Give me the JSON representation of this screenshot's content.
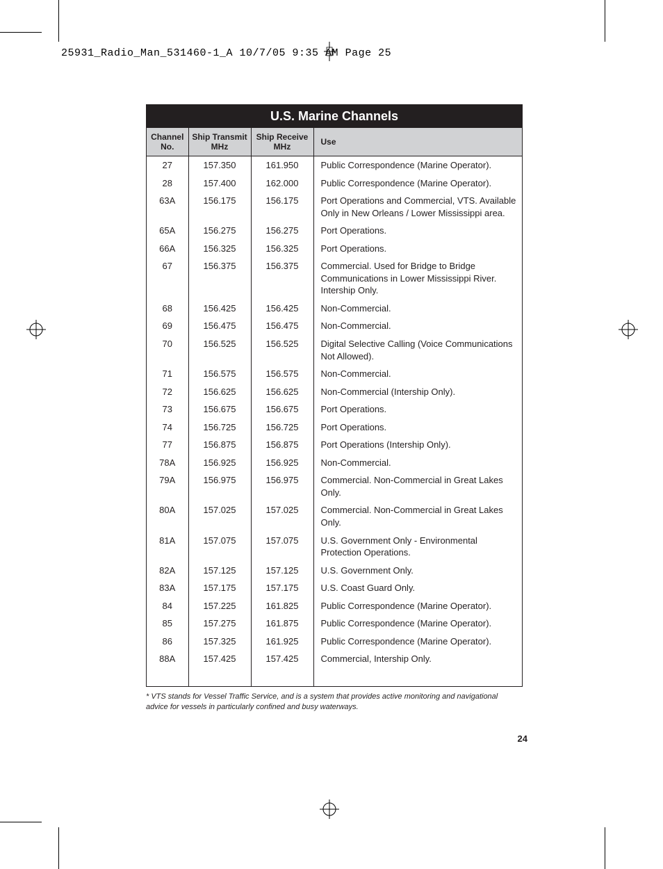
{
  "header": {
    "text": "25931_Radio_Man_531460-1_A  10/7/05  9:35 AM  Page 25"
  },
  "table": {
    "title": "U.S. Marine Channels",
    "columns": {
      "channel": "Channel No.",
      "transmit": "Ship Transmit MHz",
      "receive": "Ship Receive MHz",
      "use": "Use"
    },
    "rows": [
      {
        "ch": "27",
        "tx": "157.350",
        "rx": "161.950",
        "use": "Public Correspondence (Marine Operator)."
      },
      {
        "ch": "28",
        "tx": "157.400",
        "rx": "162.000",
        "use": "Public Correspondence (Marine Operator)."
      },
      {
        "ch": "63A",
        "tx": "156.175",
        "rx": "156.175",
        "use": "Port Operations and Commercial, VTS. Available Only in New Orleans / Lower Mississippi area."
      },
      {
        "ch": "65A",
        "tx": "156.275",
        "rx": "156.275",
        "use": "Port Operations."
      },
      {
        "ch": "66A",
        "tx": "156.325",
        "rx": "156.325",
        "use": "Port Operations."
      },
      {
        "ch": "67",
        "tx": "156.375",
        "rx": "156.375",
        "use": "Commercial.  Used for Bridge to Bridge Communications in Lower Mississippi River. Intership Only."
      },
      {
        "ch": "68",
        "tx": "156.425",
        "rx": "156.425",
        "use": "Non-Commercial."
      },
      {
        "ch": "69",
        "tx": "156.475",
        "rx": "156.475",
        "use": "Non-Commercial."
      },
      {
        "ch": "70",
        "tx": "156.525",
        "rx": "156.525",
        "use": "Digital Selective Calling (Voice Communications Not Allowed)."
      },
      {
        "ch": "71",
        "tx": "156.575",
        "rx": "156.575",
        "use": "Non-Commercial."
      },
      {
        "ch": "72",
        "tx": "156.625",
        "rx": "156.625",
        "use": "Non-Commercial (Intership Only)."
      },
      {
        "ch": "73",
        "tx": "156.675",
        "rx": "156.675",
        "use": "Port Operations."
      },
      {
        "ch": "74",
        "tx": "156.725",
        "rx": "156.725",
        "use": "Port Operations."
      },
      {
        "ch": "77",
        "tx": "156.875",
        "rx": "156.875",
        "use": "Port Operations (Intership Only)."
      },
      {
        "ch": "78A",
        "tx": "156.925",
        "rx": "156.925",
        "use": "Non-Commercial."
      },
      {
        "ch": "79A",
        "tx": "156.975",
        "rx": "156.975",
        "use": "Commercial. Non-Commercial in Great Lakes Only."
      },
      {
        "ch": "80A",
        "tx": "157.025",
        "rx": "157.025",
        "use": "Commercial. Non-Commercial in Great Lakes Only."
      },
      {
        "ch": "81A",
        "tx": "157.075",
        "rx": "157.075",
        "use": "U.S. Government Only - Environmental Protection Operations."
      },
      {
        "ch": "82A",
        "tx": "157.125",
        "rx": "157.125",
        "use": "U.S. Government Only."
      },
      {
        "ch": "83A",
        "tx": "157.175",
        "rx": "157.175",
        "use": "U.S. Coast Guard Only."
      },
      {
        "ch": "84",
        "tx": "157.225",
        "rx": "161.825",
        "use": "Public Correspondence (Marine Operator)."
      },
      {
        "ch": "85",
        "tx": "157.275",
        "rx": "161.875",
        "use": "Public Correspondence (Marine Operator)."
      },
      {
        "ch": "86",
        "tx": "157.325",
        "rx": "161.925",
        "use": "Public Correspondence (Marine Operator)."
      },
      {
        "ch": "88A",
        "tx": "157.425",
        "rx": "157.425",
        "use": "Commercial, Intership Only."
      }
    ]
  },
  "footnote": "* VTS stands for Vessel Traffic Service, and is a system that provides active monitoring and navigational advice for vessels in particularly confined and busy waterways.",
  "pageNumber": "24",
  "cropMarks": {
    "color": "#000000"
  }
}
